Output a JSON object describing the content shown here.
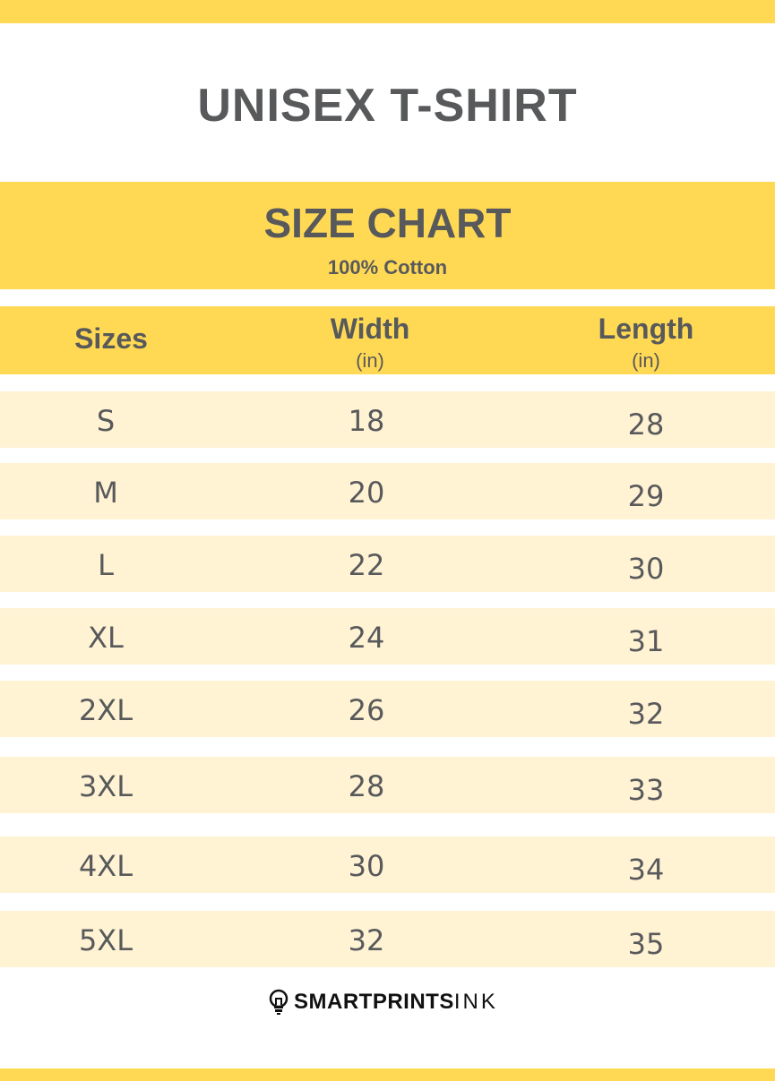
{
  "title": "UNISEX T-SHIRT",
  "banner": {
    "heading": "SIZE CHART",
    "subheading": "100% Cotton"
  },
  "columns": [
    {
      "label": "Sizes",
      "unit": ""
    },
    {
      "label": "Width",
      "unit": "(in)"
    },
    {
      "label": "Length",
      "unit": "(in)"
    }
  ],
  "rows": [
    {
      "size": "S",
      "width": "18",
      "length": "28"
    },
    {
      "size": "M",
      "width": "20",
      "length": "29"
    },
    {
      "size": "L",
      "width": "22",
      "length": "30"
    },
    {
      "size": "XL",
      "width": "24",
      "length": "31"
    },
    {
      "size": "2XL",
      "width": "26",
      "length": "32"
    },
    {
      "size": "3XL",
      "width": "28",
      "length": "33"
    },
    {
      "size": "4XL",
      "width": "30",
      "length": "34"
    },
    {
      "size": "5XL",
      "width": "32",
      "length": "35"
    }
  ],
  "logo": {
    "bold": "SMARTPRINTS",
    "light": "INK",
    "icon": "lightbulb-icon"
  },
  "colors": {
    "yellow": "#ffd954",
    "row": "#fff3d4",
    "text": "#58595b"
  }
}
